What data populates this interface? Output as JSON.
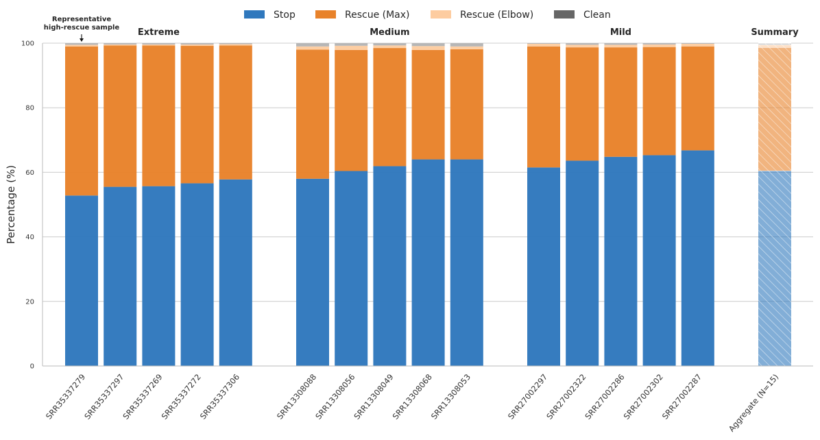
{
  "chart_data": {
    "type": "bar",
    "stacked": true,
    "ylabel": "Percentage (%)",
    "ylim": [
      0,
      100
    ],
    "yticks": [
      0,
      20,
      40,
      60,
      80,
      100
    ],
    "grid": true,
    "legend_position": "top-center",
    "colors": {
      "stop": "#2f78bd",
      "rescue_max": "#e8822a",
      "rescue_elbow": "#fdcca0",
      "clean": "#b4b4b4",
      "clean_legend": "#666666"
    },
    "legend": [
      "Stop",
      "Rescue (Max)",
      "Rescue (Elbow)",
      "Clean"
    ],
    "groups": [
      {
        "name": "Extreme",
        "bars": [
          {
            "label": "SRR35337279",
            "stop": 52.8,
            "rescue_max": 46.2,
            "rescue_elbow": 0.5,
            "clean": 0.5
          },
          {
            "label": "SRR35337297",
            "stop": 55.5,
            "rescue_max": 43.8,
            "rescue_elbow": 0.3,
            "clean": 0.4
          },
          {
            "label": "SRR35337269",
            "stop": 55.7,
            "rescue_max": 43.6,
            "rescue_elbow": 0.3,
            "clean": 0.4
          },
          {
            "label": "SRR35337272",
            "stop": 56.6,
            "rescue_max": 42.6,
            "rescue_elbow": 0.4,
            "clean": 0.4
          },
          {
            "label": "SRR35337306",
            "stop": 57.8,
            "rescue_max": 41.5,
            "rescue_elbow": 0.4,
            "clean": 0.3
          }
        ]
      },
      {
        "name": "Medium",
        "bars": [
          {
            "label": "SRR13308088",
            "stop": 58.0,
            "rescue_max": 40.0,
            "rescue_elbow": 1.0,
            "clean": 1.0
          },
          {
            "label": "SRR13308056",
            "stop": 60.4,
            "rescue_max": 37.5,
            "rescue_elbow": 1.3,
            "clean": 0.8
          },
          {
            "label": "SRR13308049",
            "stop": 61.9,
            "rescue_max": 36.6,
            "rescue_elbow": 0.8,
            "clean": 0.7
          },
          {
            "label": "SRR13308068",
            "stop": 64.0,
            "rescue_max": 33.9,
            "rescue_elbow": 1.2,
            "clean": 0.9
          },
          {
            "label": "SRR13308053",
            "stop": 64.0,
            "rescue_max": 34.1,
            "rescue_elbow": 0.9,
            "clean": 1.0
          }
        ]
      },
      {
        "name": "Mild",
        "bars": [
          {
            "label": "SRR27002297",
            "stop": 61.5,
            "rescue_max": 37.5,
            "rescue_elbow": 0.8,
            "clean": 0.2
          },
          {
            "label": "SRR27002322",
            "stop": 63.6,
            "rescue_max": 35.1,
            "rescue_elbow": 0.8,
            "clean": 0.5
          },
          {
            "label": "SRR27002286",
            "stop": 64.8,
            "rescue_max": 33.9,
            "rescue_elbow": 0.8,
            "clean": 0.5
          },
          {
            "label": "SRR27002302",
            "stop": 65.3,
            "rescue_max": 33.5,
            "rescue_elbow": 0.8,
            "clean": 0.4
          },
          {
            "label": "SRR27002287",
            "stop": 66.8,
            "rescue_max": 32.2,
            "rescue_elbow": 0.8,
            "clean": 0.2
          }
        ]
      },
      {
        "name": "Summary",
        "summary": true,
        "bars": [
          {
            "label": "Aggregate (N=15)",
            "stop": 60.5,
            "rescue_max": 38.2,
            "rescue_elbow": 0.8,
            "clean": 0.5
          }
        ]
      }
    ],
    "annotation": {
      "lines": [
        "Representative",
        "high-rescue sample"
      ],
      "target": "SRR35337279"
    }
  }
}
